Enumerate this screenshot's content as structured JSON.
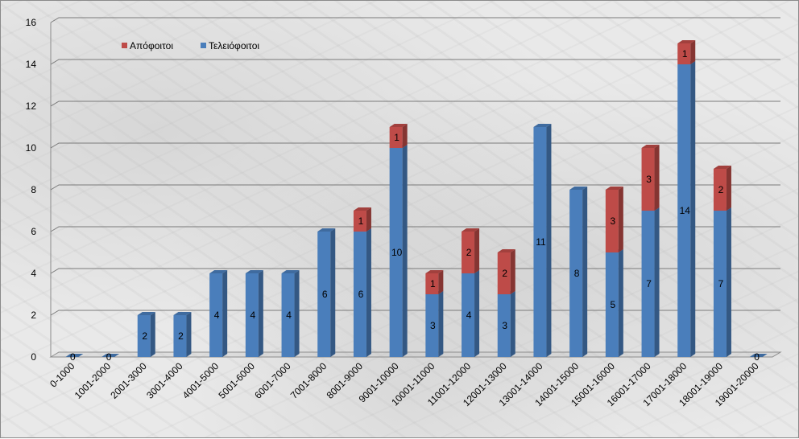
{
  "chart_data": {
    "type": "bar",
    "stacked": true,
    "title": "",
    "xlabel": "",
    "ylabel": "",
    "ylim": [
      0,
      16
    ],
    "yticks": [
      0,
      2,
      4,
      6,
      8,
      10,
      12,
      14,
      16
    ],
    "grid": true,
    "legend_position": "top-left",
    "categories": [
      "0-1000",
      "1001-2000",
      "2001-3000",
      "3001-4000",
      "4001-5000",
      "5001-6000",
      "6001-7000",
      "7001-8000",
      "8001-9000",
      "9001-10000",
      "10001-11000",
      "11001-12000",
      "12001-13000",
      "13001-14000",
      "14001-15000",
      "15001-16000",
      "16001-17000",
      "17001-18000",
      "18001-19000",
      "19001-20000"
    ],
    "series": [
      {
        "name": "Τελειόφοιτοι",
        "color": "#4a7ebb",
        "values": [
          0,
          0,
          2,
          2,
          4,
          4,
          4,
          6,
          6,
          10,
          3,
          4,
          3,
          11,
          8,
          5,
          7,
          14,
          7,
          0
        ],
        "labels": [
          "0",
          "0",
          "2",
          "2",
          "4",
          "4",
          "4",
          "6",
          "6",
          "10",
          "3",
          "4",
          "3",
          "11",
          "8",
          "5",
          "7",
          "14",
          "7",
          "0"
        ]
      },
      {
        "name": "Απόφοιτοι",
        "color": "#be4b48",
        "values": [
          0,
          0,
          0,
          0,
          0,
          0,
          0,
          0,
          1,
          1,
          1,
          2,
          2,
          0,
          0,
          3,
          3,
          1,
          2,
          0
        ],
        "labels": [
          "",
          "",
          "",
          "",
          "",
          "",
          "",
          "",
          "1",
          "1",
          "1",
          "2",
          "2",
          "",
          "",
          "3",
          "3",
          "1",
          "2",
          ""
        ]
      }
    ],
    "legend_order": [
      "Απόφοιτοι",
      "Τελειόφοιτοι"
    ]
  }
}
